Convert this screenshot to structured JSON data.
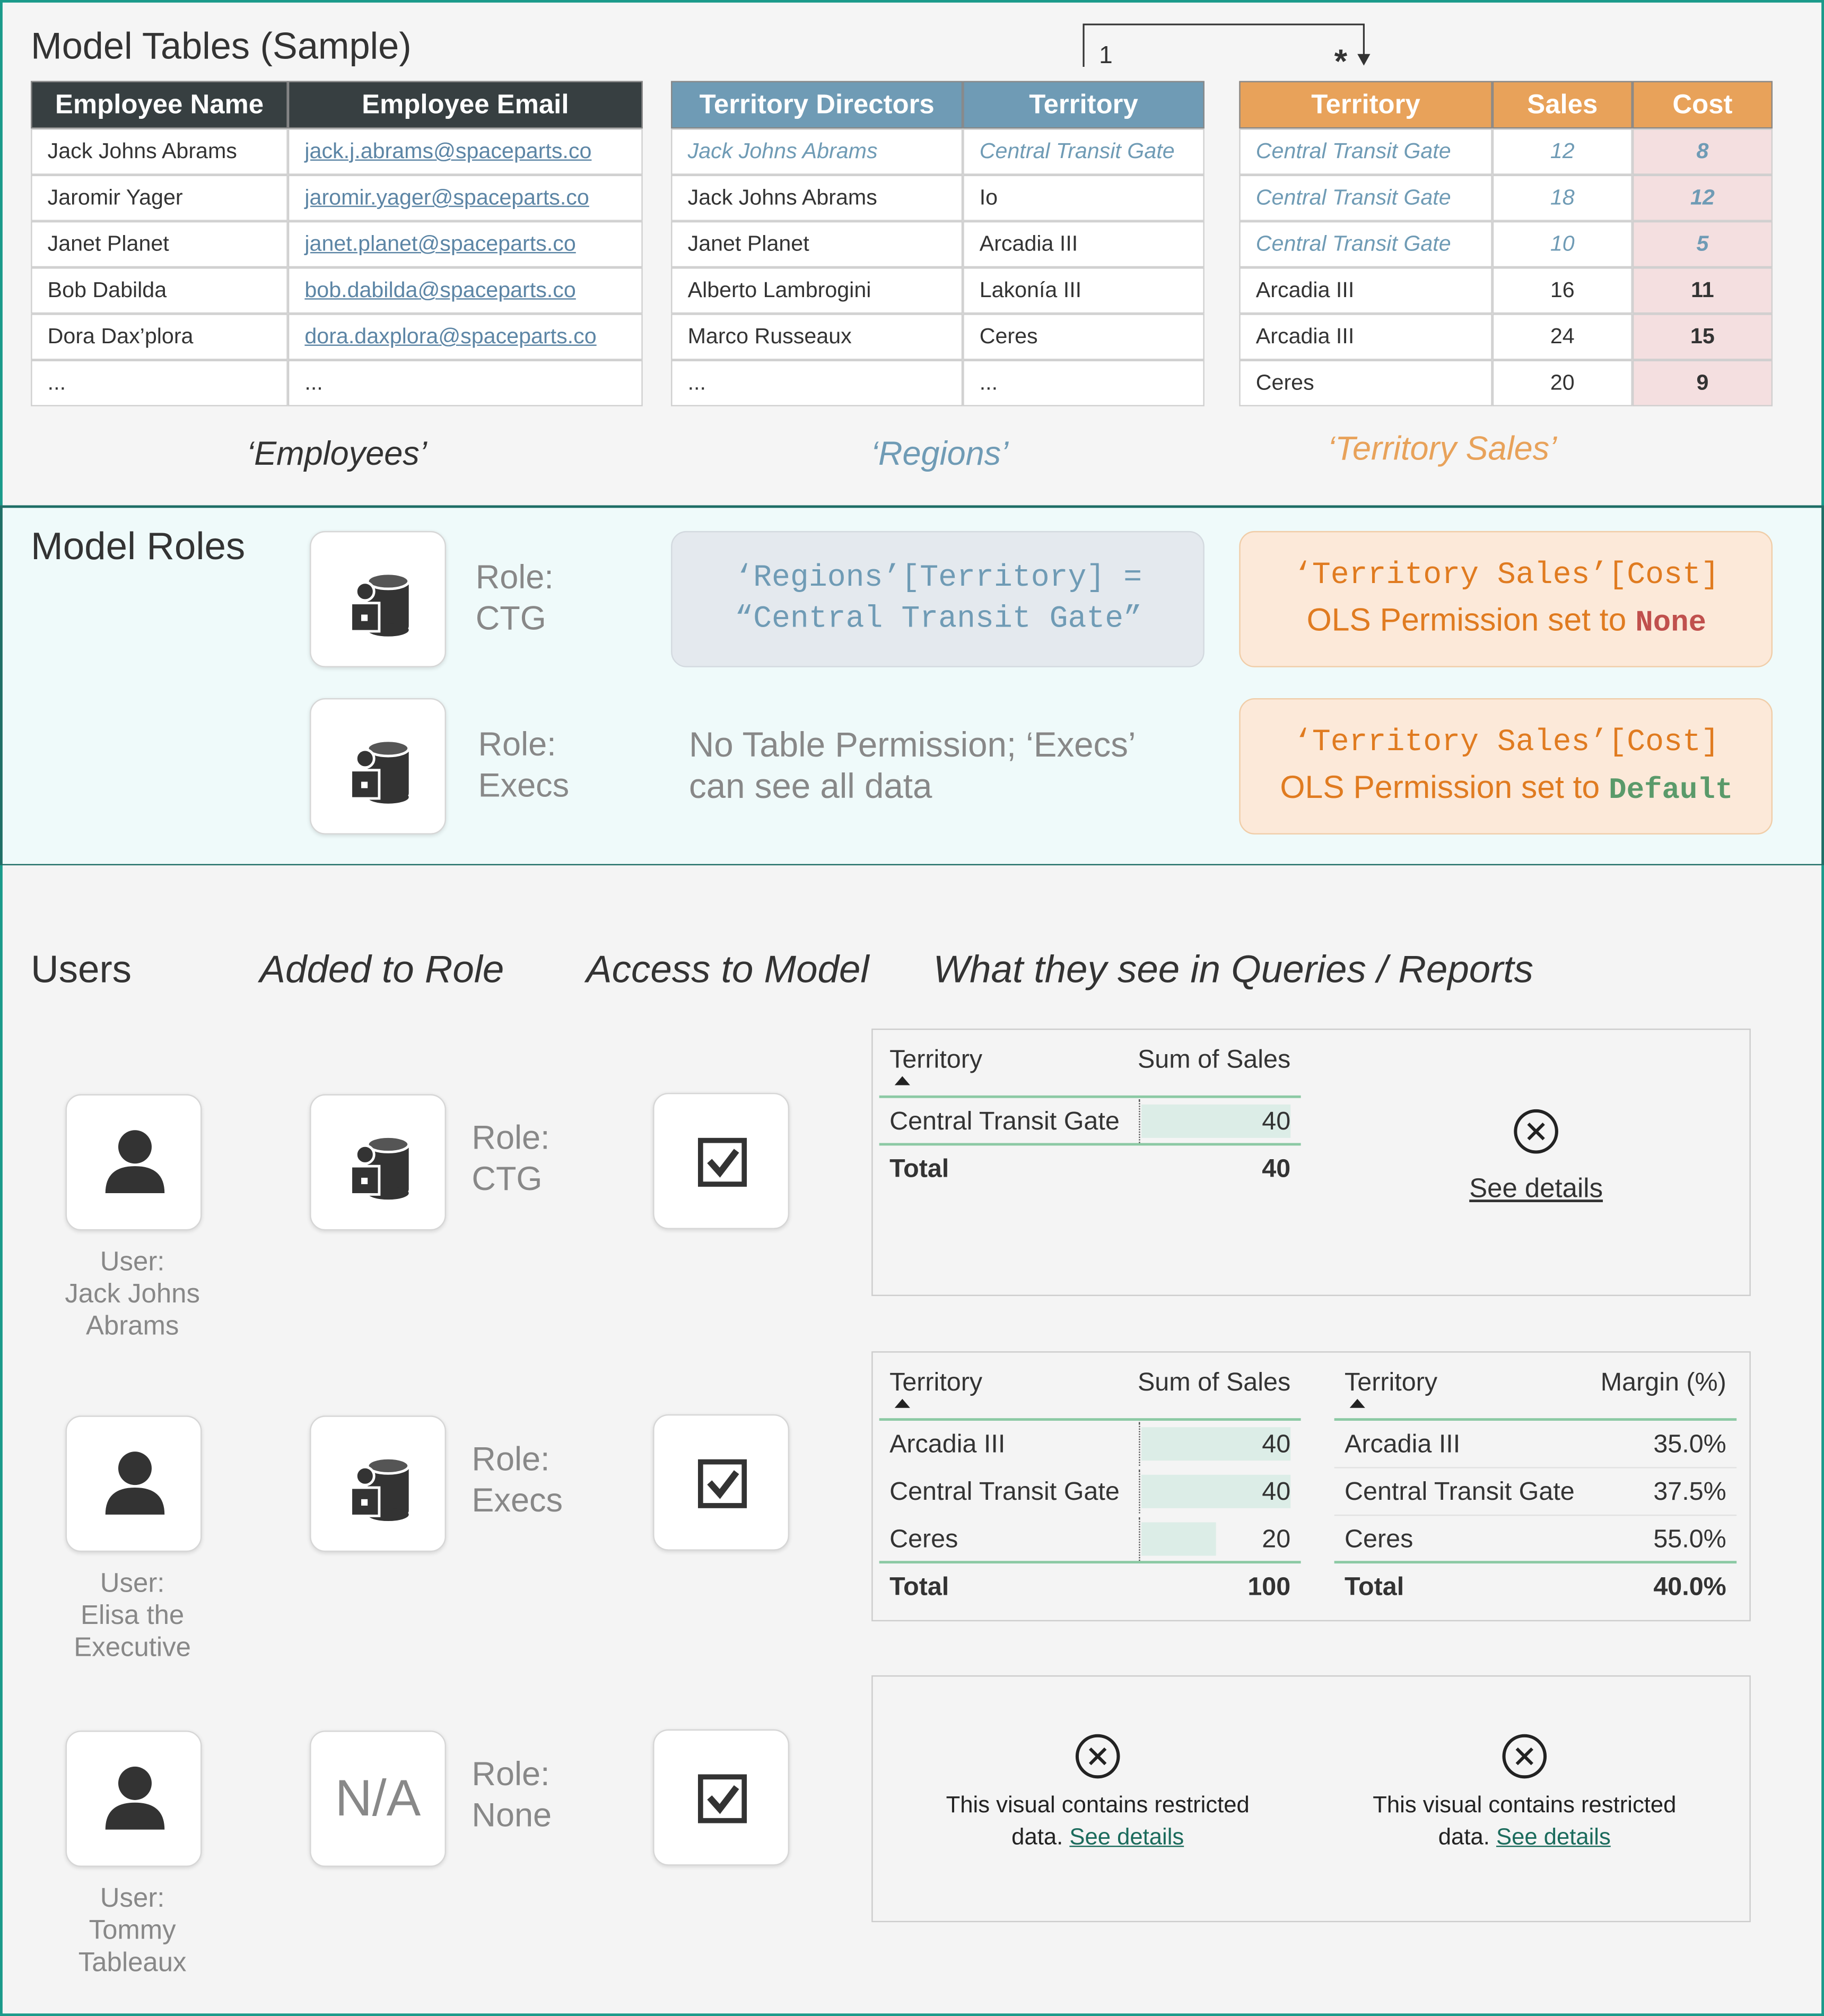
{
  "model_tables": {
    "title": "Model Tables (Sample)",
    "relationship": {
      "one": "1",
      "many": "*"
    },
    "employees": {
      "caption": "‘Employees’",
      "headers": [
        "Employee Name",
        "Employee Email"
      ],
      "rows": [
        [
          "Jack Johns Abrams",
          "jack.j.abrams@spaceparts.co"
        ],
        [
          "Jaromir Yager",
          "jaromir.yager@spaceparts.co"
        ],
        [
          "Janet Planet",
          "janet.planet@spaceparts.co"
        ],
        [
          "Bob Dabilda",
          "bob.dabilda@spaceparts.co"
        ],
        [
          "Dora Dax’plora",
          "dora.daxplora@spaceparts.co"
        ],
        [
          "...",
          "..."
        ]
      ]
    },
    "regions": {
      "caption": "‘Regions’",
      "headers": [
        "Territory Directors",
        "Territory"
      ],
      "rows": [
        [
          "Jack Johns Abrams",
          "Central Transit Gate"
        ],
        [
          "Jack Johns Abrams",
          "Io"
        ],
        [
          "Janet Planet",
          "Arcadia III"
        ],
        [
          "Alberto Lambrogini",
          "Lakonía III"
        ],
        [
          "Marco Russeaux",
          "Ceres"
        ],
        [
          "...",
          "..."
        ]
      ]
    },
    "territory_sales": {
      "caption": "‘Territory Sales’",
      "headers": [
        "Territory",
        "Sales",
        "Cost"
      ],
      "rows": [
        [
          "Central Transit Gate",
          "12",
          "8"
        ],
        [
          "Central Transit Gate",
          "18",
          "12"
        ],
        [
          "Central Transit Gate",
          "10",
          "5"
        ],
        [
          "Arcadia III",
          "16",
          "11"
        ],
        [
          "Arcadia III",
          "24",
          "15"
        ],
        [
          "Ceres",
          "20",
          "9"
        ]
      ]
    }
  },
  "model_roles": {
    "title": "Model Roles",
    "roles": [
      {
        "role": [
          "Role:",
          "CTG"
        ],
        "permission": [
          "‘Regions’[Territory] =",
          "“Central Transit Gate”"
        ],
        "ols": {
          "column": "‘Territory Sales’[Cost]",
          "text": "OLS Permission set to",
          "setting": "None"
        }
      },
      {
        "role": [
          "Role:",
          "Execs"
        ],
        "permission": [
          "No Table Permission; ‘Execs’",
          "can see all data"
        ],
        "ols": {
          "column": "‘Territory Sales’[Cost]",
          "text": "OLS Permission set to",
          "setting": "Default"
        }
      }
    ]
  },
  "users": {
    "headers": [
      "Users",
      "Added to Role",
      "Access to Model",
      "What they see in Queries / Reports"
    ],
    "rows": [
      {
        "user": [
          "User:",
          "Jack Johns",
          "Abrams"
        ],
        "role": [
          "Role:",
          "CTG"
        ],
        "report": {
          "visuals": [
            {
              "type": "table",
              "headers": [
                "Territory",
                "Sum of Sales"
              ],
              "rows": [
                [
                  "Central Transit Gate",
                  "40"
                ]
              ],
              "total": [
                "Total",
                "40"
              ]
            },
            {
              "type": "error",
              "link": "See details"
            }
          ]
        }
      },
      {
        "user": [
          "User:",
          "Elisa the",
          "Executive"
        ],
        "role": [
          "Role:",
          "Execs"
        ],
        "report": {
          "visuals": [
            {
              "type": "table",
              "headers": [
                "Territory",
                "Sum of Sales"
              ],
              "rows": [
                [
                  "Arcadia III",
                  "40"
                ],
                [
                  "Central Transit Gate",
                  "40"
                ],
                [
                  "Ceres",
                  "20"
                ]
              ],
              "total": [
                "Total",
                "100"
              ]
            },
            {
              "type": "table",
              "headers": [
                "Territory",
                "Margin (%)"
              ],
              "rows": [
                [
                  "Arcadia III",
                  "35.0%"
                ],
                [
                  "Central Transit Gate",
                  "37.5%"
                ],
                [
                  "Ceres",
                  "55.0%"
                ]
              ],
              "total": [
                "Total",
                "40.0%"
              ]
            }
          ]
        }
      },
      {
        "user": [
          "User:",
          "Tommy",
          "Tableaux"
        ],
        "role_icon": "N/A",
        "role": [
          "Role:",
          "None"
        ],
        "report": {
          "visuals": [
            {
              "type": "restricted",
              "lines": [
                "This visual contains restricted",
                "data."
              ],
              "link": "See details"
            },
            {
              "type": "restricted",
              "lines": [
                "This visual contains restricted",
                "data."
              ],
              "link": "See details"
            }
          ]
        }
      }
    ]
  }
}
